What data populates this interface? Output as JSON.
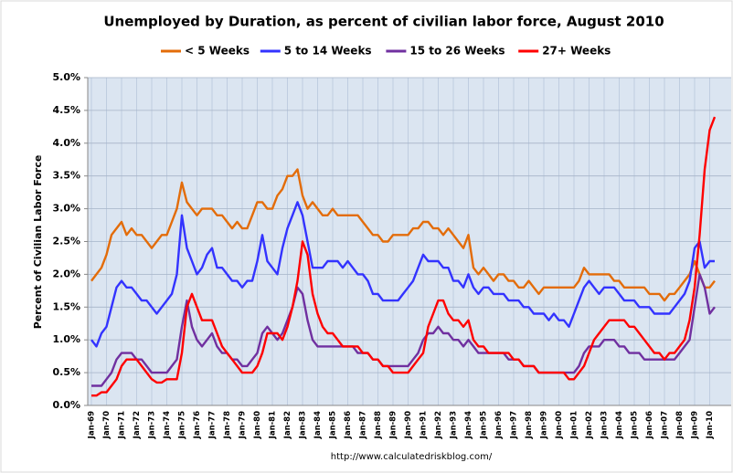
{
  "chart_data": {
    "type": "line",
    "title": "Unemployed by Duration, as percent of civilian labor force, August 2010",
    "y_label": "Percent of Civilian Labor Force",
    "footer": "http://www.calculatedriskblog.com/",
    "legend": "top",
    "grid": true,
    "ylim": [
      0,
      5
    ],
    "yticks": [
      {
        "value": 0,
        "label": "0.0%"
      },
      {
        "value": 0.5,
        "label": "0.5%"
      },
      {
        "value": 1,
        "label": "1.0%"
      },
      {
        "value": 1.5,
        "label": "1.5%"
      },
      {
        "value": 2,
        "label": "2.0%"
      },
      {
        "value": 2.5,
        "label": "2.5%"
      },
      {
        "value": 3,
        "label": "3.0%"
      },
      {
        "value": 3.5,
        "label": "3.5%"
      },
      {
        "value": 4,
        "label": "4.0%"
      },
      {
        "value": 4.5,
        "label": "4.5%"
      },
      {
        "value": 5,
        "label": "5.0%"
      }
    ],
    "categories": [
      "Jan-69",
      null,
      null,
      "Jan-70",
      null,
      null,
      "Jan-71",
      null,
      null,
      "Jan-72",
      null,
      null,
      "Jan-73",
      null,
      null,
      "Jan-74",
      null,
      null,
      "Jan-75",
      null,
      null,
      "Jan-76",
      null,
      null,
      "Jan-77",
      null,
      null,
      "Jan-78",
      null,
      null,
      "Jan-79",
      null,
      null,
      "Jan-80",
      null,
      null,
      "Jan-81",
      null,
      null,
      "Jan-82",
      null,
      null,
      "Jan-83",
      null,
      null,
      "Jan-84",
      null,
      null,
      "Jan-85",
      null,
      null,
      "Jan-86",
      null,
      null,
      "Jan-87",
      null,
      null,
      "Jan-88",
      null,
      null,
      "Jan-89",
      null,
      null,
      "Jan-90",
      null,
      null,
      "Jan-91",
      null,
      null,
      "Jan-92",
      null,
      null,
      "Jan-93",
      null,
      null,
      "Jan-94",
      null,
      null,
      "Jan-95",
      null,
      null,
      "Jan-96",
      null,
      null,
      "Jan-97",
      null,
      null,
      "Jan-98",
      null,
      null,
      "Jan-99",
      null,
      null,
      "Jan-00",
      null,
      null,
      "Jan-01",
      null,
      null,
      "Jan-02",
      null,
      null,
      "Jan-03",
      null,
      null,
      "Jan-04",
      null,
      null,
      "Jan-05",
      null,
      null,
      "Jan-06",
      null,
      null,
      "Jan-07",
      null,
      null,
      "Jan-08",
      null,
      null,
      "Jan-09",
      null,
      null,
      "Jan-10",
      null
    ],
    "series": [
      {
        "name": "< 5 Weeks",
        "color": "#e36c09",
        "values": [
          1.9,
          2.0,
          2.1,
          2.3,
          2.6,
          2.7,
          2.8,
          2.6,
          2.7,
          2.6,
          2.6,
          2.5,
          2.4,
          2.5,
          2.6,
          2.6,
          2.8,
          3.0,
          3.4,
          3.1,
          3.0,
          2.9,
          3.0,
          3.0,
          3.0,
          2.9,
          2.9,
          2.8,
          2.7,
          2.8,
          2.7,
          2.7,
          2.9,
          3.1,
          3.1,
          3.0,
          3.0,
          3.2,
          3.3,
          3.5,
          3.5,
          3.6,
          3.2,
          3.0,
          3.1,
          3.0,
          2.9,
          2.9,
          3.0,
          2.9,
          2.9,
          2.9,
          2.9,
          2.9,
          2.8,
          2.7,
          2.6,
          2.6,
          2.5,
          2.5,
          2.6,
          2.6,
          2.6,
          2.6,
          2.7,
          2.7,
          2.8,
          2.8,
          2.7,
          2.7,
          2.6,
          2.7,
          2.6,
          2.5,
          2.4,
          2.6,
          2.1,
          2.0,
          2.1,
          2.0,
          1.9,
          2.0,
          2.0,
          1.9,
          1.9,
          1.8,
          1.8,
          1.9,
          1.8,
          1.7,
          1.8,
          1.8,
          1.8,
          1.8,
          1.8,
          1.8,
          1.8,
          1.9,
          2.1,
          2.0,
          2.0,
          2.0,
          2.0,
          2.0,
          1.9,
          1.9,
          1.8,
          1.8,
          1.8,
          1.8,
          1.8,
          1.7,
          1.7,
          1.7,
          1.6,
          1.7,
          1.7,
          1.8,
          1.9,
          2.0,
          2.2,
          2.0,
          1.8,
          1.8,
          1.9
        ]
      },
      {
        "name": "5 to 14 Weeks",
        "color": "#3333ff",
        "values": [
          1.0,
          0.9,
          1.1,
          1.2,
          1.5,
          1.8,
          1.9,
          1.8,
          1.8,
          1.7,
          1.6,
          1.6,
          1.5,
          1.4,
          1.5,
          1.6,
          1.7,
          2.0,
          2.9,
          2.4,
          2.2,
          2.0,
          2.1,
          2.3,
          2.4,
          2.1,
          2.1,
          2.0,
          1.9,
          1.9,
          1.8,
          1.9,
          1.9,
          2.2,
          2.6,
          2.2,
          2.1,
          2.0,
          2.4,
          2.7,
          2.9,
          3.1,
          2.9,
          2.5,
          2.1,
          2.1,
          2.1,
          2.2,
          2.2,
          2.2,
          2.1,
          2.2,
          2.1,
          2.0,
          2.0,
          1.9,
          1.7,
          1.7,
          1.6,
          1.6,
          1.6,
          1.6,
          1.7,
          1.8,
          1.9,
          2.1,
          2.3,
          2.2,
          2.2,
          2.2,
          2.1,
          2.1,
          1.9,
          1.9,
          1.8,
          2.0,
          1.8,
          1.7,
          1.8,
          1.8,
          1.7,
          1.7,
          1.7,
          1.6,
          1.6,
          1.6,
          1.5,
          1.5,
          1.4,
          1.4,
          1.4,
          1.3,
          1.4,
          1.3,
          1.3,
          1.2,
          1.4,
          1.6,
          1.8,
          1.9,
          1.8,
          1.7,
          1.8,
          1.8,
          1.8,
          1.7,
          1.6,
          1.6,
          1.6,
          1.5,
          1.5,
          1.5,
          1.4,
          1.4,
          1.4,
          1.4,
          1.5,
          1.6,
          1.7,
          1.9,
          2.4,
          2.5,
          2.1,
          2.2,
          2.2
        ]
      },
      {
        "name": "15 to 26 Weeks",
        "color": "#7030a0",
        "values": [
          0.3,
          0.3,
          0.3,
          0.4,
          0.5,
          0.7,
          0.8,
          0.8,
          0.8,
          0.7,
          0.7,
          0.6,
          0.5,
          0.5,
          0.5,
          0.5,
          0.6,
          0.7,
          1.2,
          1.6,
          1.2,
          1.0,
          0.9,
          1.0,
          1.1,
          0.9,
          0.8,
          0.8,
          0.7,
          0.7,
          0.6,
          0.6,
          0.7,
          0.8,
          1.1,
          1.2,
          1.1,
          1.0,
          1.1,
          1.3,
          1.5,
          1.8,
          1.7,
          1.3,
          1.0,
          0.9,
          0.9,
          0.9,
          0.9,
          0.9,
          0.9,
          0.9,
          0.9,
          0.8,
          0.8,
          0.8,
          0.7,
          0.7,
          0.6,
          0.6,
          0.6,
          0.6,
          0.6,
          0.6,
          0.7,
          0.8,
          1.0,
          1.1,
          1.1,
          1.2,
          1.1,
          1.1,
          1.0,
          1.0,
          0.9,
          1.0,
          0.9,
          0.8,
          0.8,
          0.8,
          0.8,
          0.8,
          0.8,
          0.7,
          0.7,
          0.7,
          0.6,
          0.6,
          0.6,
          0.5,
          0.5,
          0.5,
          0.5,
          0.5,
          0.5,
          0.5,
          0.5,
          0.6,
          0.8,
          0.9,
          0.9,
          0.9,
          1.0,
          1.0,
          1.0,
          0.9,
          0.9,
          0.8,
          0.8,
          0.8,
          0.7,
          0.7,
          0.7,
          0.7,
          0.7,
          0.7,
          0.7,
          0.8,
          0.9,
          1.0,
          1.5,
          2.0,
          1.8,
          1.4,
          1.5
        ]
      },
      {
        "name": "27+ Weeks",
        "color": "#ff0000",
        "values": [
          0.15,
          0.15,
          0.2,
          0.2,
          0.3,
          0.4,
          0.6,
          0.7,
          0.7,
          0.7,
          0.6,
          0.5,
          0.4,
          0.35,
          0.35,
          0.4,
          0.4,
          0.4,
          0.8,
          1.5,
          1.7,
          1.5,
          1.3,
          1.3,
          1.3,
          1.1,
          0.9,
          0.8,
          0.7,
          0.6,
          0.5,
          0.5,
          0.5,
          0.6,
          0.8,
          1.1,
          1.1,
          1.1,
          1.0,
          1.2,
          1.5,
          1.9,
          2.5,
          2.3,
          1.7,
          1.4,
          1.2,
          1.1,
          1.1,
          1.0,
          0.9,
          0.9,
          0.9,
          0.9,
          0.8,
          0.8,
          0.7,
          0.7,
          0.6,
          0.6,
          0.5,
          0.5,
          0.5,
          0.5,
          0.6,
          0.7,
          0.8,
          1.2,
          1.4,
          1.6,
          1.6,
          1.4,
          1.3,
          1.3,
          1.2,
          1.3,
          1.0,
          0.9,
          0.9,
          0.8,
          0.8,
          0.8,
          0.8,
          0.8,
          0.7,
          0.7,
          0.6,
          0.6,
          0.6,
          0.5,
          0.5,
          0.5,
          0.5,
          0.5,
          0.5,
          0.4,
          0.4,
          0.5,
          0.6,
          0.8,
          1.0,
          1.1,
          1.2,
          1.3,
          1.3,
          1.3,
          1.3,
          1.2,
          1.2,
          1.1,
          1.0,
          0.9,
          0.8,
          0.8,
          0.7,
          0.8,
          0.8,
          0.9,
          1.0,
          1.3,
          1.8,
          2.6,
          3.6,
          4.2,
          4.4
        ]
      }
    ]
  }
}
